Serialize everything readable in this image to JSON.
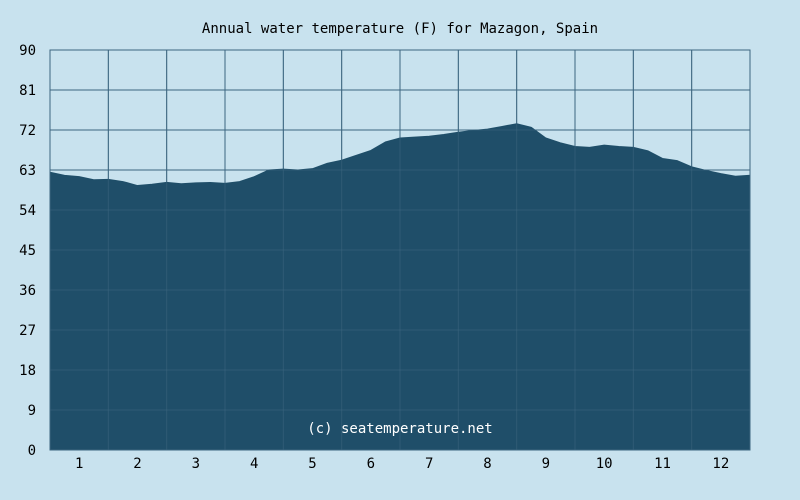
{
  "chart_data": {
    "type": "area",
    "title": "Annual water temperature (F) for Mazagon, Spain",
    "watermark": "(c) seatemperature.net",
    "ylim": [
      0,
      90
    ],
    "yticks": [
      "0",
      "9",
      "18",
      "27",
      "36",
      "45",
      "54",
      "63",
      "72",
      "81",
      "90"
    ],
    "xlim": [
      0.5,
      12.5
    ],
    "xticks": [
      "1",
      "2",
      "3",
      "4",
      "5",
      "6",
      "7",
      "8",
      "9",
      "10",
      "11",
      "12"
    ],
    "grid": true,
    "colors": {
      "background": "#c8e2ee",
      "plot_background": "#c8e2ee",
      "fill": "#1f4e69",
      "grid": "#3d6680",
      "watermark": "#ffffff"
    },
    "series": [
      {
        "x": [
          0.5,
          0.75,
          1.0,
          1.25,
          1.5,
          1.75,
          2.0,
          2.25,
          2.5,
          2.75,
          3.0,
          3.25,
          3.5,
          3.75,
          4.0,
          4.25,
          4.5,
          4.75,
          5.0,
          5.25,
          5.5,
          5.75,
          6.0,
          6.25,
          6.5,
          6.75,
          7.0,
          7.25,
          7.5,
          7.75,
          8.0,
          8.25,
          8.5,
          8.75,
          9.0,
          9.25,
          9.5,
          9.75,
          10.0,
          10.25,
          10.5,
          10.75,
          11.0,
          11.25,
          11.5,
          11.75,
          12.0,
          12.25,
          12.5
        ],
        "values": [
          62.5,
          61.8,
          61.5,
          60.8,
          60.9,
          60.4,
          59.5,
          59.8,
          60.2,
          59.9,
          60.1,
          60.2,
          60.0,
          60.4,
          61.5,
          63.0,
          63.2,
          63.0,
          63.3,
          64.5,
          65.2,
          66.3,
          67.4,
          69.3,
          70.2,
          70.4,
          70.6,
          71.0,
          71.5,
          71.9,
          72.2,
          72.8,
          73.4,
          72.6,
          70.2,
          69.1,
          68.3,
          68.1,
          68.6,
          68.3,
          68.1,
          67.3,
          65.6,
          65.1,
          63.7,
          62.9,
          62.2,
          61.6,
          61.8
        ]
      }
    ]
  }
}
